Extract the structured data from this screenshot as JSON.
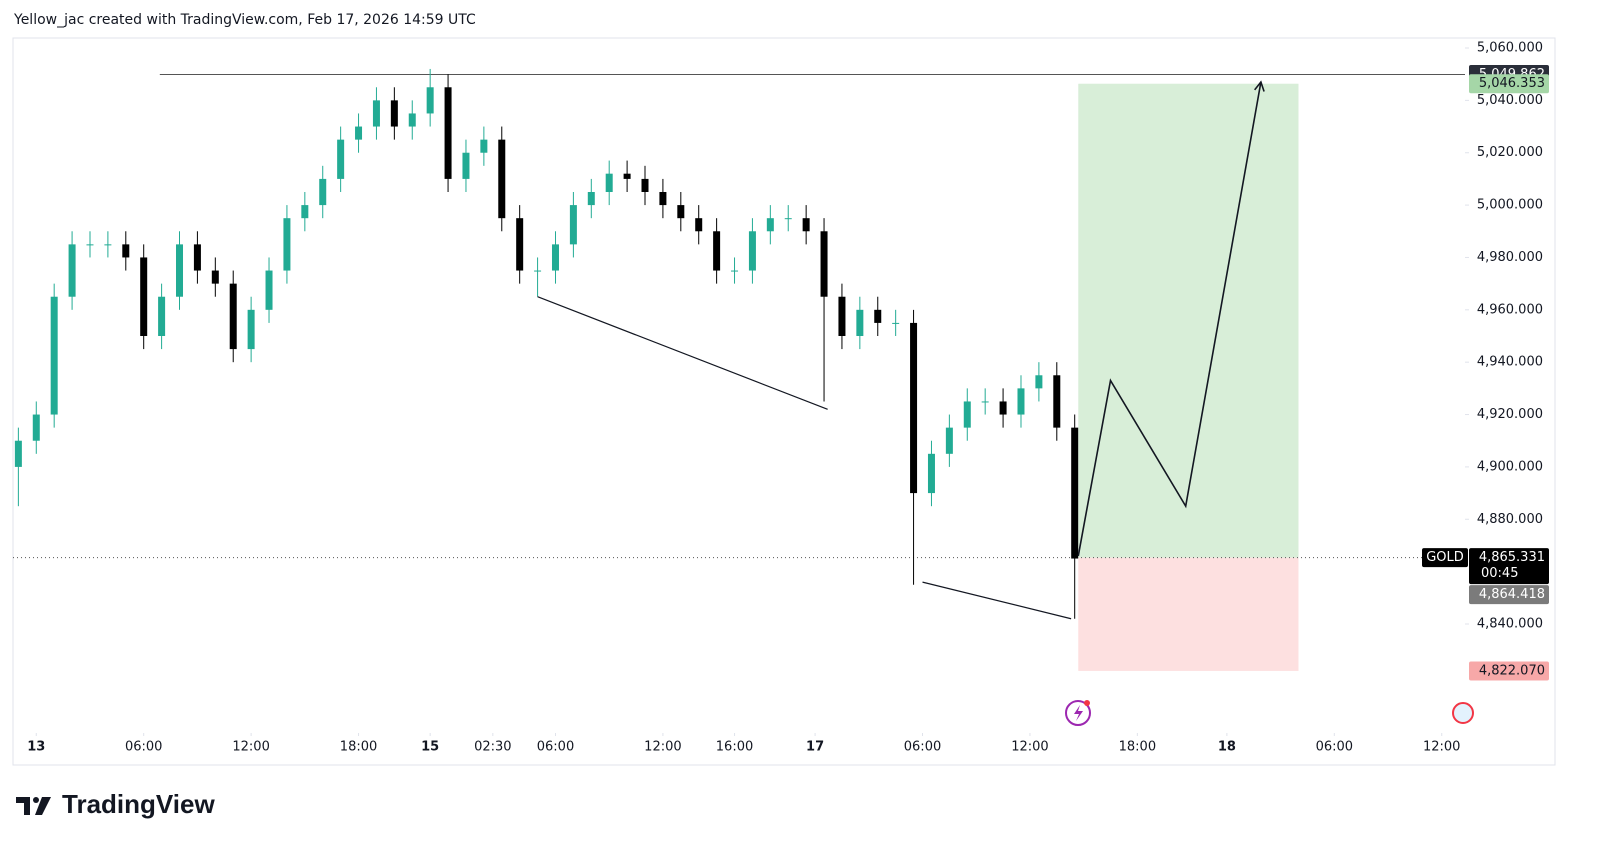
{
  "chart_data": {
    "type": "candlestick",
    "header": "Yellow_jac created with TradingView.com, Feb 17, 2026 14:59 UTC",
    "brand": "TradingView",
    "symbol": "GOLD",
    "countdown": "00:45",
    "up_color": "#22ab94",
    "down_color": "#000000",
    "x": [
      -1,
      0,
      1,
      2,
      3,
      4,
      5,
      6,
      7,
      8,
      9,
      10,
      11,
      12,
      13,
      14,
      15,
      16,
      17,
      18,
      19,
      20,
      21,
      22,
      23,
      24,
      25,
      26,
      27,
      28,
      29,
      30,
      31,
      32,
      33,
      34,
      35,
      36,
      37,
      38,
      39,
      40,
      41,
      42,
      43,
      44,
      45,
      46,
      47,
      48,
      49,
      50,
      51,
      52,
      53,
      54,
      55,
      56,
      57,
      58
    ],
    "open": [
      4900,
      4910,
      4920,
      4965,
      4985,
      4985,
      4985,
      4980,
      4950,
      4965,
      4985,
      4975,
      4970,
      4945,
      4960,
      4975,
      4995,
      5000,
      5010,
      5025,
      5030,
      5040,
      5030,
      5035,
      5045,
      5010,
      5020,
      5025,
      4995,
      4975,
      4975,
      4985,
      5000,
      5005,
      5012,
      5010,
      5005,
      5000,
      4995,
      4990,
      4975,
      4975,
      4990,
      4995,
      4995,
      4990,
      4965,
      4950,
      4960,
      4955,
      4955,
      4890,
      4905,
      4915,
      4925,
      4925,
      4920,
      4930,
      4935,
      4915
    ],
    "high": [
      4915,
      4925,
      4970,
      4990,
      4990,
      4990,
      4990,
      4985,
      4970,
      4990,
      4990,
      4980,
      4975,
      4965,
      4980,
      5000,
      5005,
      5015,
      5030,
      5035,
      5045,
      5045,
      5040,
      5052,
      5050,
      5025,
      5030,
      5030,
      5000,
      4980,
      4990,
      5005,
      5010,
      5017,
      5017,
      5015,
      5010,
      5005,
      5000,
      4995,
      4980,
      4995,
      5000,
      5000,
      5000,
      4995,
      4970,
      4965,
      4965,
      4960,
      4960,
      4910,
      4920,
      4930,
      4930,
      4930,
      4935,
      4940,
      4940,
      4920
    ],
    "low": [
      4885,
      4905,
      4915,
      4960,
      4980,
      4980,
      4975,
      4945,
      4945,
      4960,
      4970,
      4965,
      4940,
      4940,
      4955,
      4970,
      4990,
      4995,
      5005,
      5020,
      5025,
      5025,
      5025,
      5030,
      5005,
      5005,
      5015,
      4990,
      4970,
      4965,
      4970,
      4980,
      4995,
      5000,
      5005,
      5000,
      4995,
      4990,
      4985,
      4970,
      4970,
      4970,
      4985,
      4990,
      4985,
      4925,
      4945,
      4945,
      4950,
      4950,
      4855,
      4885,
      4900,
      4910,
      4920,
      4915,
      4915,
      4925,
      4910,
      4842
    ],
    "close": [
      4910,
      4920,
      4965,
      4985,
      4985,
      4985,
      4980,
      4950,
      4965,
      4985,
      4975,
      4970,
      4945,
      4960,
      4975,
      4995,
      5000,
      5010,
      5025,
      5030,
      5040,
      5030,
      5035,
      5045,
      5010,
      5020,
      5025,
      4995,
      4975,
      4975,
      4985,
      5000,
      5005,
      5012,
      5010,
      5005,
      5000,
      4995,
      4990,
      4975,
      4975,
      4990,
      4995,
      4995,
      4990,
      4965,
      4950,
      4960,
      4955,
      4955,
      4890,
      4905,
      4915,
      4925,
      4925,
      4920,
      4930,
      4935,
      4915,
      4865
    ],
    "xlim": [
      -1.3,
      79.8
    ],
    "ylim": [
      4800,
      5064
    ],
    "xticks": [
      {
        "value": 0,
        "label": "13"
      },
      {
        "value": 6,
        "label": "06:00"
      },
      {
        "value": 12,
        "label": "12:00"
      },
      {
        "value": 18,
        "label": "18:00"
      },
      {
        "value": 22,
        "label": "15"
      },
      {
        "value": 25.5,
        "label": "02:30"
      },
      {
        "value": 29,
        "label": "06:00"
      },
      {
        "value": 35,
        "label": "12:00"
      },
      {
        "value": 39,
        "label": "16:00"
      },
      {
        "value": 43.5,
        "label": "17"
      },
      {
        "value": 49.5,
        "label": "06:00"
      },
      {
        "value": 55.5,
        "label": "12:00"
      },
      {
        "value": 61.5,
        "label": "18:00"
      },
      {
        "value": 66.5,
        "label": "18"
      },
      {
        "value": 72.5,
        "label": "06:00"
      },
      {
        "value": 78.5,
        "label": "12:00"
      }
    ],
    "yticks": [
      {
        "value": 4840,
        "label": "4,840.000"
      },
      {
        "value": 4880,
        "label": "4,880.000"
      },
      {
        "value": 4900,
        "label": "4,900.000"
      },
      {
        "value": 4920,
        "label": "4,920.000"
      },
      {
        "value": 4940,
        "label": "4,940.000"
      },
      {
        "value": 4960,
        "label": "4,960.000"
      },
      {
        "value": 4980,
        "label": "4,980.000"
      },
      {
        "value": 5000,
        "label": "5,000.000"
      },
      {
        "value": 5020,
        "label": "5,020.000"
      },
      {
        "value": 5040,
        "label": "5,040.000"
      },
      {
        "value": 5060,
        "label": "5,060.000"
      }
    ],
    "price_labels": [
      {
        "value": 5049.862,
        "label": "5,049.862",
        "color": "#2a2e39",
        "text_color": "#ffffff"
      },
      {
        "value": 5046.353,
        "label": "5,046.353",
        "color": "#a5d6a7",
        "text_color": "#131722"
      },
      {
        "value": 4865.331,
        "label": "4,865.331",
        "color": "#000000",
        "text_color": "#ffffff"
      },
      {
        "value": 4864.418,
        "label": "4,864.418",
        "color": "#7b7b7b",
        "text_color": "#ffffff"
      },
      {
        "value": 4822.07,
        "label": "4,822.070",
        "color": "#f7a8a8",
        "text_color": "#131722"
      }
    ],
    "hline_start": 6.9,
    "position_x": [
      58.2,
      70.5
    ],
    "projection": {
      "x": [
        58.2,
        60,
        64.2,
        68.4
      ],
      "y": [
        4866,
        4933,
        4885,
        5047
      ]
    },
    "trendlines": [
      {
        "x": [
          28,
          44.2
        ],
        "y": [
          4965,
          4922
        ]
      },
      {
        "x": [
          49.5,
          57.8
        ],
        "y": [
          4856,
          4842
        ]
      }
    ]
  }
}
